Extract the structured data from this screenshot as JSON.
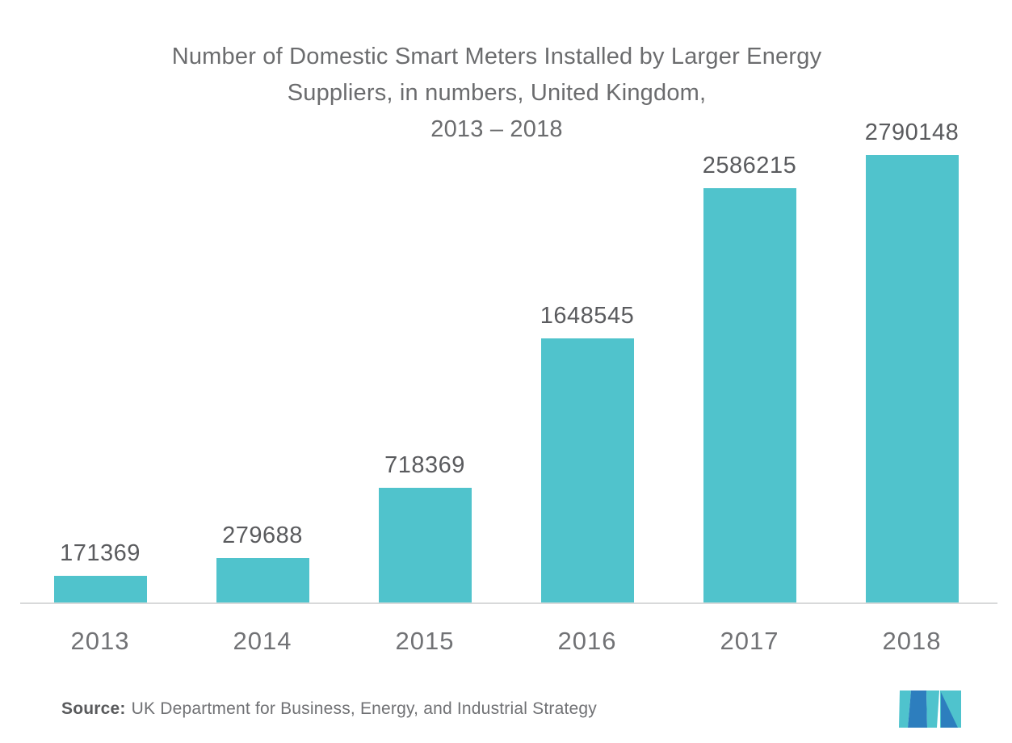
{
  "chart_data": {
    "type": "bar",
    "title": "Number of Domestic Smart Meters Installed by Larger Energy\nSuppliers, in numbers, United Kingdom,\n2013 – 2018",
    "categories": [
      "2013",
      "2014",
      "2015",
      "2016",
      "2017",
      "2018"
    ],
    "values": [
      171369,
      279688,
      718369,
      1648545,
      2586215,
      2790148
    ],
    "value_labels": [
      "171369",
      "279688",
      "718369",
      "1648545",
      "2586215",
      "2790148"
    ],
    "xlabel": "",
    "ylabel": "",
    "ylim": [
      0,
      2790148
    ],
    "grid": false,
    "legend": false,
    "bar_color": "#50c3cc"
  },
  "source": {
    "label": "Source:",
    "text": "UK Department for Business, Energy, and Industrial Strategy"
  },
  "colors": {
    "bar": "#50c3cc",
    "logo_teal": "#4fc3cd",
    "logo_blue": "#2d7ebe",
    "axis_line": "#d8d9da",
    "title_text": "#6b6c6e",
    "value_text": "#5a5b5e",
    "tick_text": "#717275"
  }
}
